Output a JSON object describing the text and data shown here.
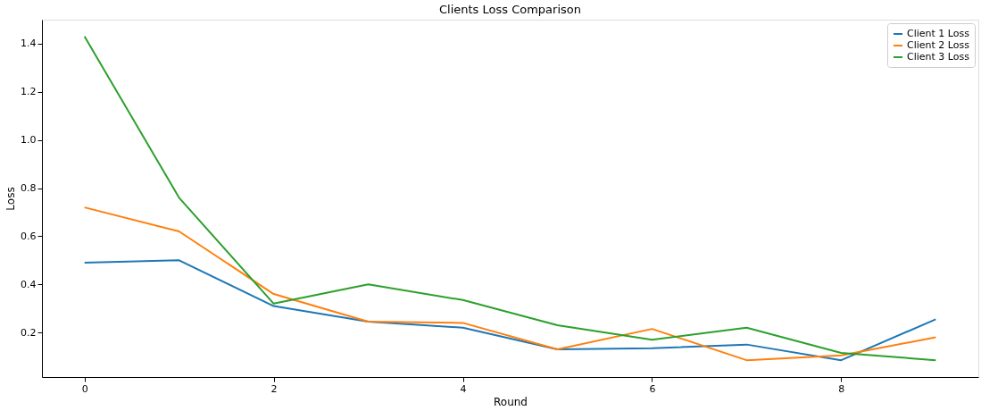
{
  "chart_data": {
    "type": "line",
    "title": "Clients Loss Comparison",
    "xlabel": "Round",
    "ylabel": "Loss",
    "x": [
      0,
      1,
      2,
      3,
      4,
      5,
      6,
      7,
      8,
      9
    ],
    "series": [
      {
        "name": "Client 1 Loss",
        "color": "#1f77b4",
        "values": [
          0.49,
          0.5,
          0.31,
          0.245,
          0.22,
          0.13,
          0.135,
          0.15,
          0.085,
          0.255
        ]
      },
      {
        "name": "Client 2 Loss",
        "color": "#ff7f0e",
        "values": [
          0.72,
          0.62,
          0.36,
          0.245,
          0.24,
          0.13,
          0.215,
          0.085,
          0.105,
          0.18
        ]
      },
      {
        "name": "Client 3 Loss",
        "color": "#2ca02c",
        "values": [
          1.43,
          0.76,
          0.32,
          0.4,
          0.335,
          0.23,
          0.17,
          0.22,
          0.115,
          0.085
        ]
      }
    ],
    "xlim": [
      -0.45,
      9.45
    ],
    "xticks": [
      0,
      2,
      4,
      6,
      8
    ],
    "ylim": [
      0.015,
      1.5
    ],
    "yticks": [
      0.2,
      0.4,
      0.6,
      0.8,
      {
        "value": 1,
        "label": "1.0"
      },
      1.2,
      1.4
    ],
    "grid": false,
    "legend": "top right",
    "marker": "none",
    "line_style": "solid"
  }
}
